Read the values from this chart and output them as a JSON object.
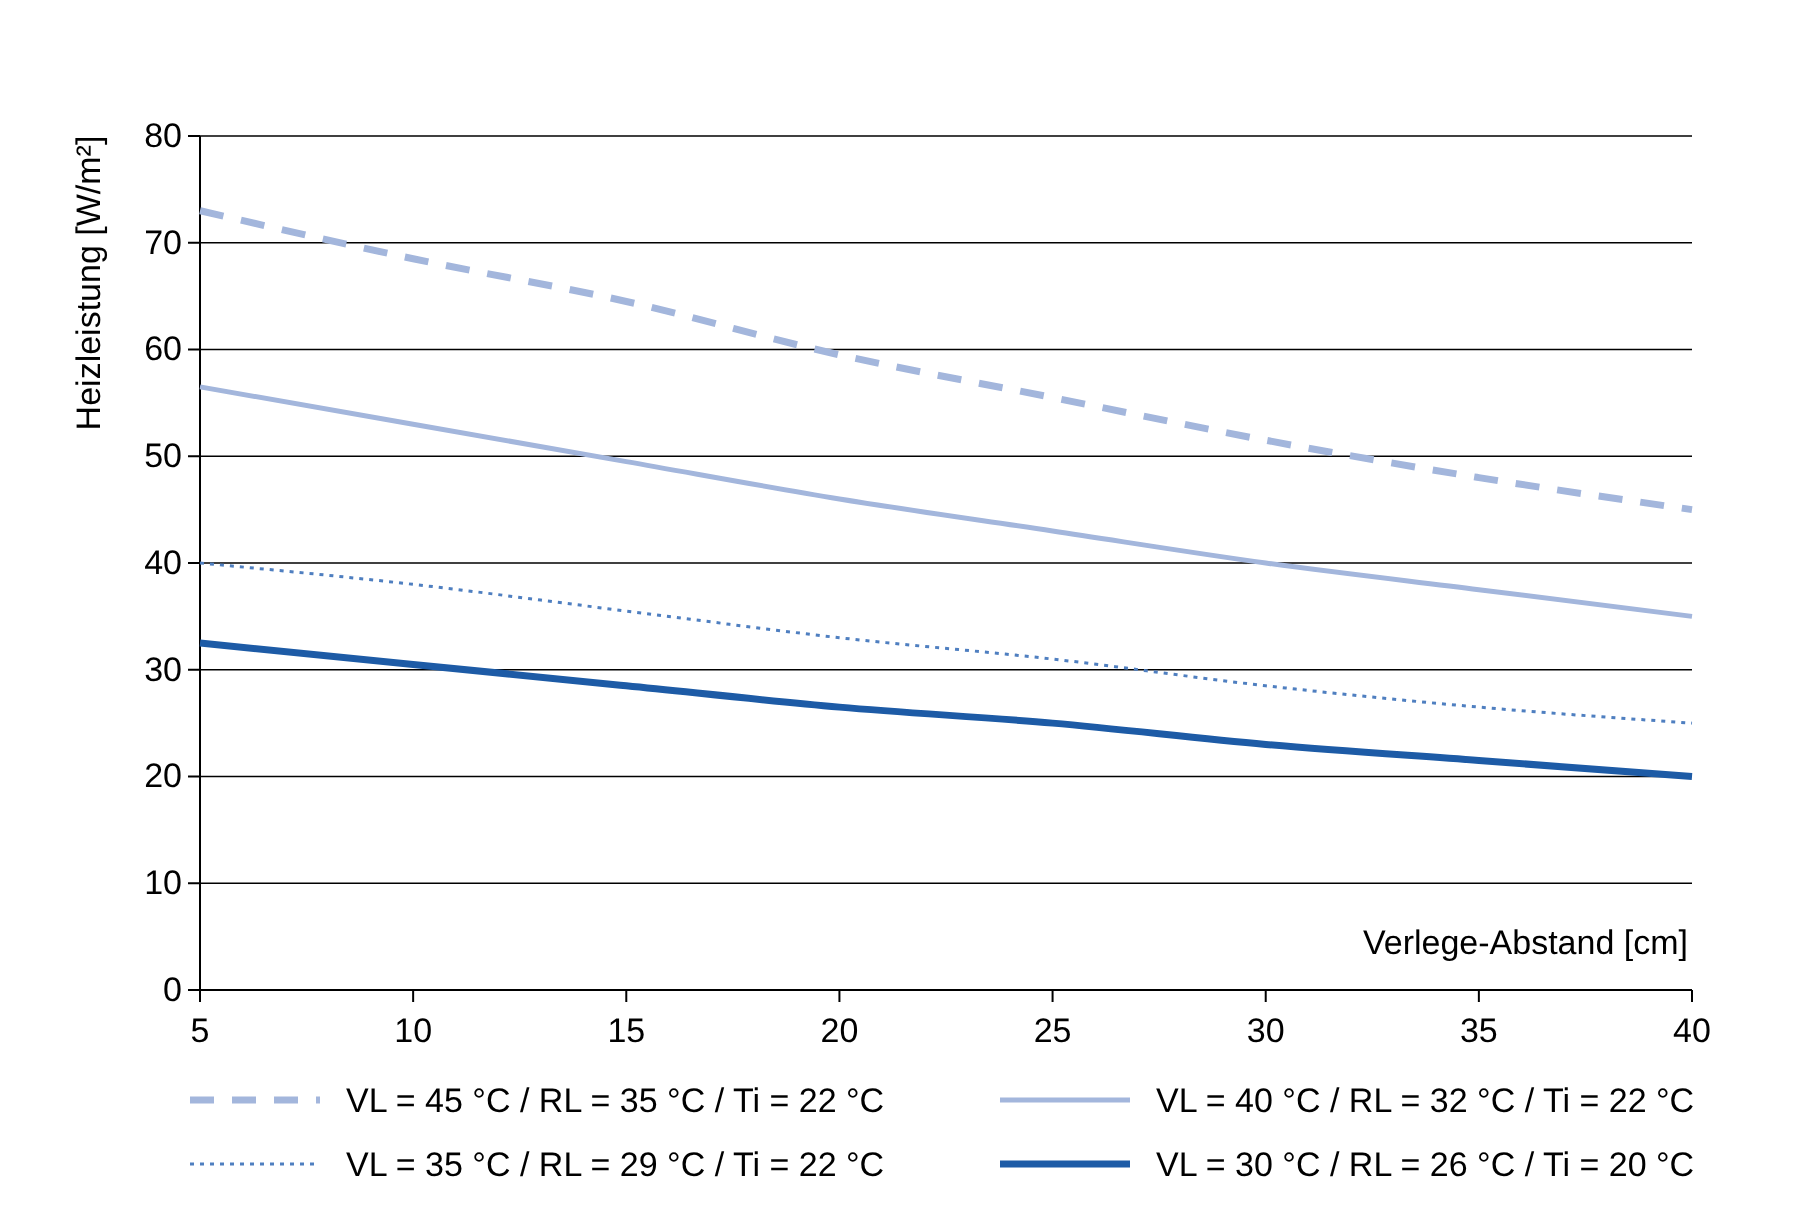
{
  "chart_data": {
    "type": "line",
    "xlabel": "Verlege-Abstand  [cm]",
    "ylabel": "Heizleistung  [W/m²]",
    "x": [
      5,
      10,
      15,
      20,
      25,
      30,
      35,
      40
    ],
    "xlim": [
      5,
      40
    ],
    "xticks": [
      5,
      10,
      15,
      20,
      25,
      30,
      35,
      40
    ],
    "ylim": [
      0,
      80
    ],
    "yticks": [
      0,
      10,
      20,
      30,
      40,
      50,
      60,
      70,
      80
    ],
    "grid": "y",
    "legend": "bottom",
    "marker": "none",
    "series": [
      {
        "name": "VL = 45 °C / RL = 35 °C / Ti = 22 °C",
        "color": "#a3b6dc",
        "line_style": "dashed",
        "values": [
          73,
          68.5,
          64.5,
          59.5,
          55.5,
          51.5,
          48,
          45
        ]
      },
      {
        "name": "VL = 40 °C / RL = 32 °C / Ti = 22 °C",
        "color": "#a3b6dc",
        "line_style": "solid",
        "values": [
          56.5,
          53,
          49.5,
          46,
          43,
          40,
          37.5,
          35
        ]
      },
      {
        "name": "VL = 35 °C / RL = 29 °C / Ti = 22 °C",
        "color": "#4f7fc0",
        "line_style": "dotted",
        "values": [
          40,
          38,
          35.5,
          33,
          31,
          28.5,
          26.5,
          25
        ]
      },
      {
        "name": "VL = 30 °C / RL = 26 °C / Ti = 20 °C",
        "color": "#1d5ba6",
        "line_style": "solid",
        "values": [
          32.5,
          30.5,
          28.5,
          26.5,
          25,
          23,
          21.5,
          20
        ]
      }
    ]
  }
}
